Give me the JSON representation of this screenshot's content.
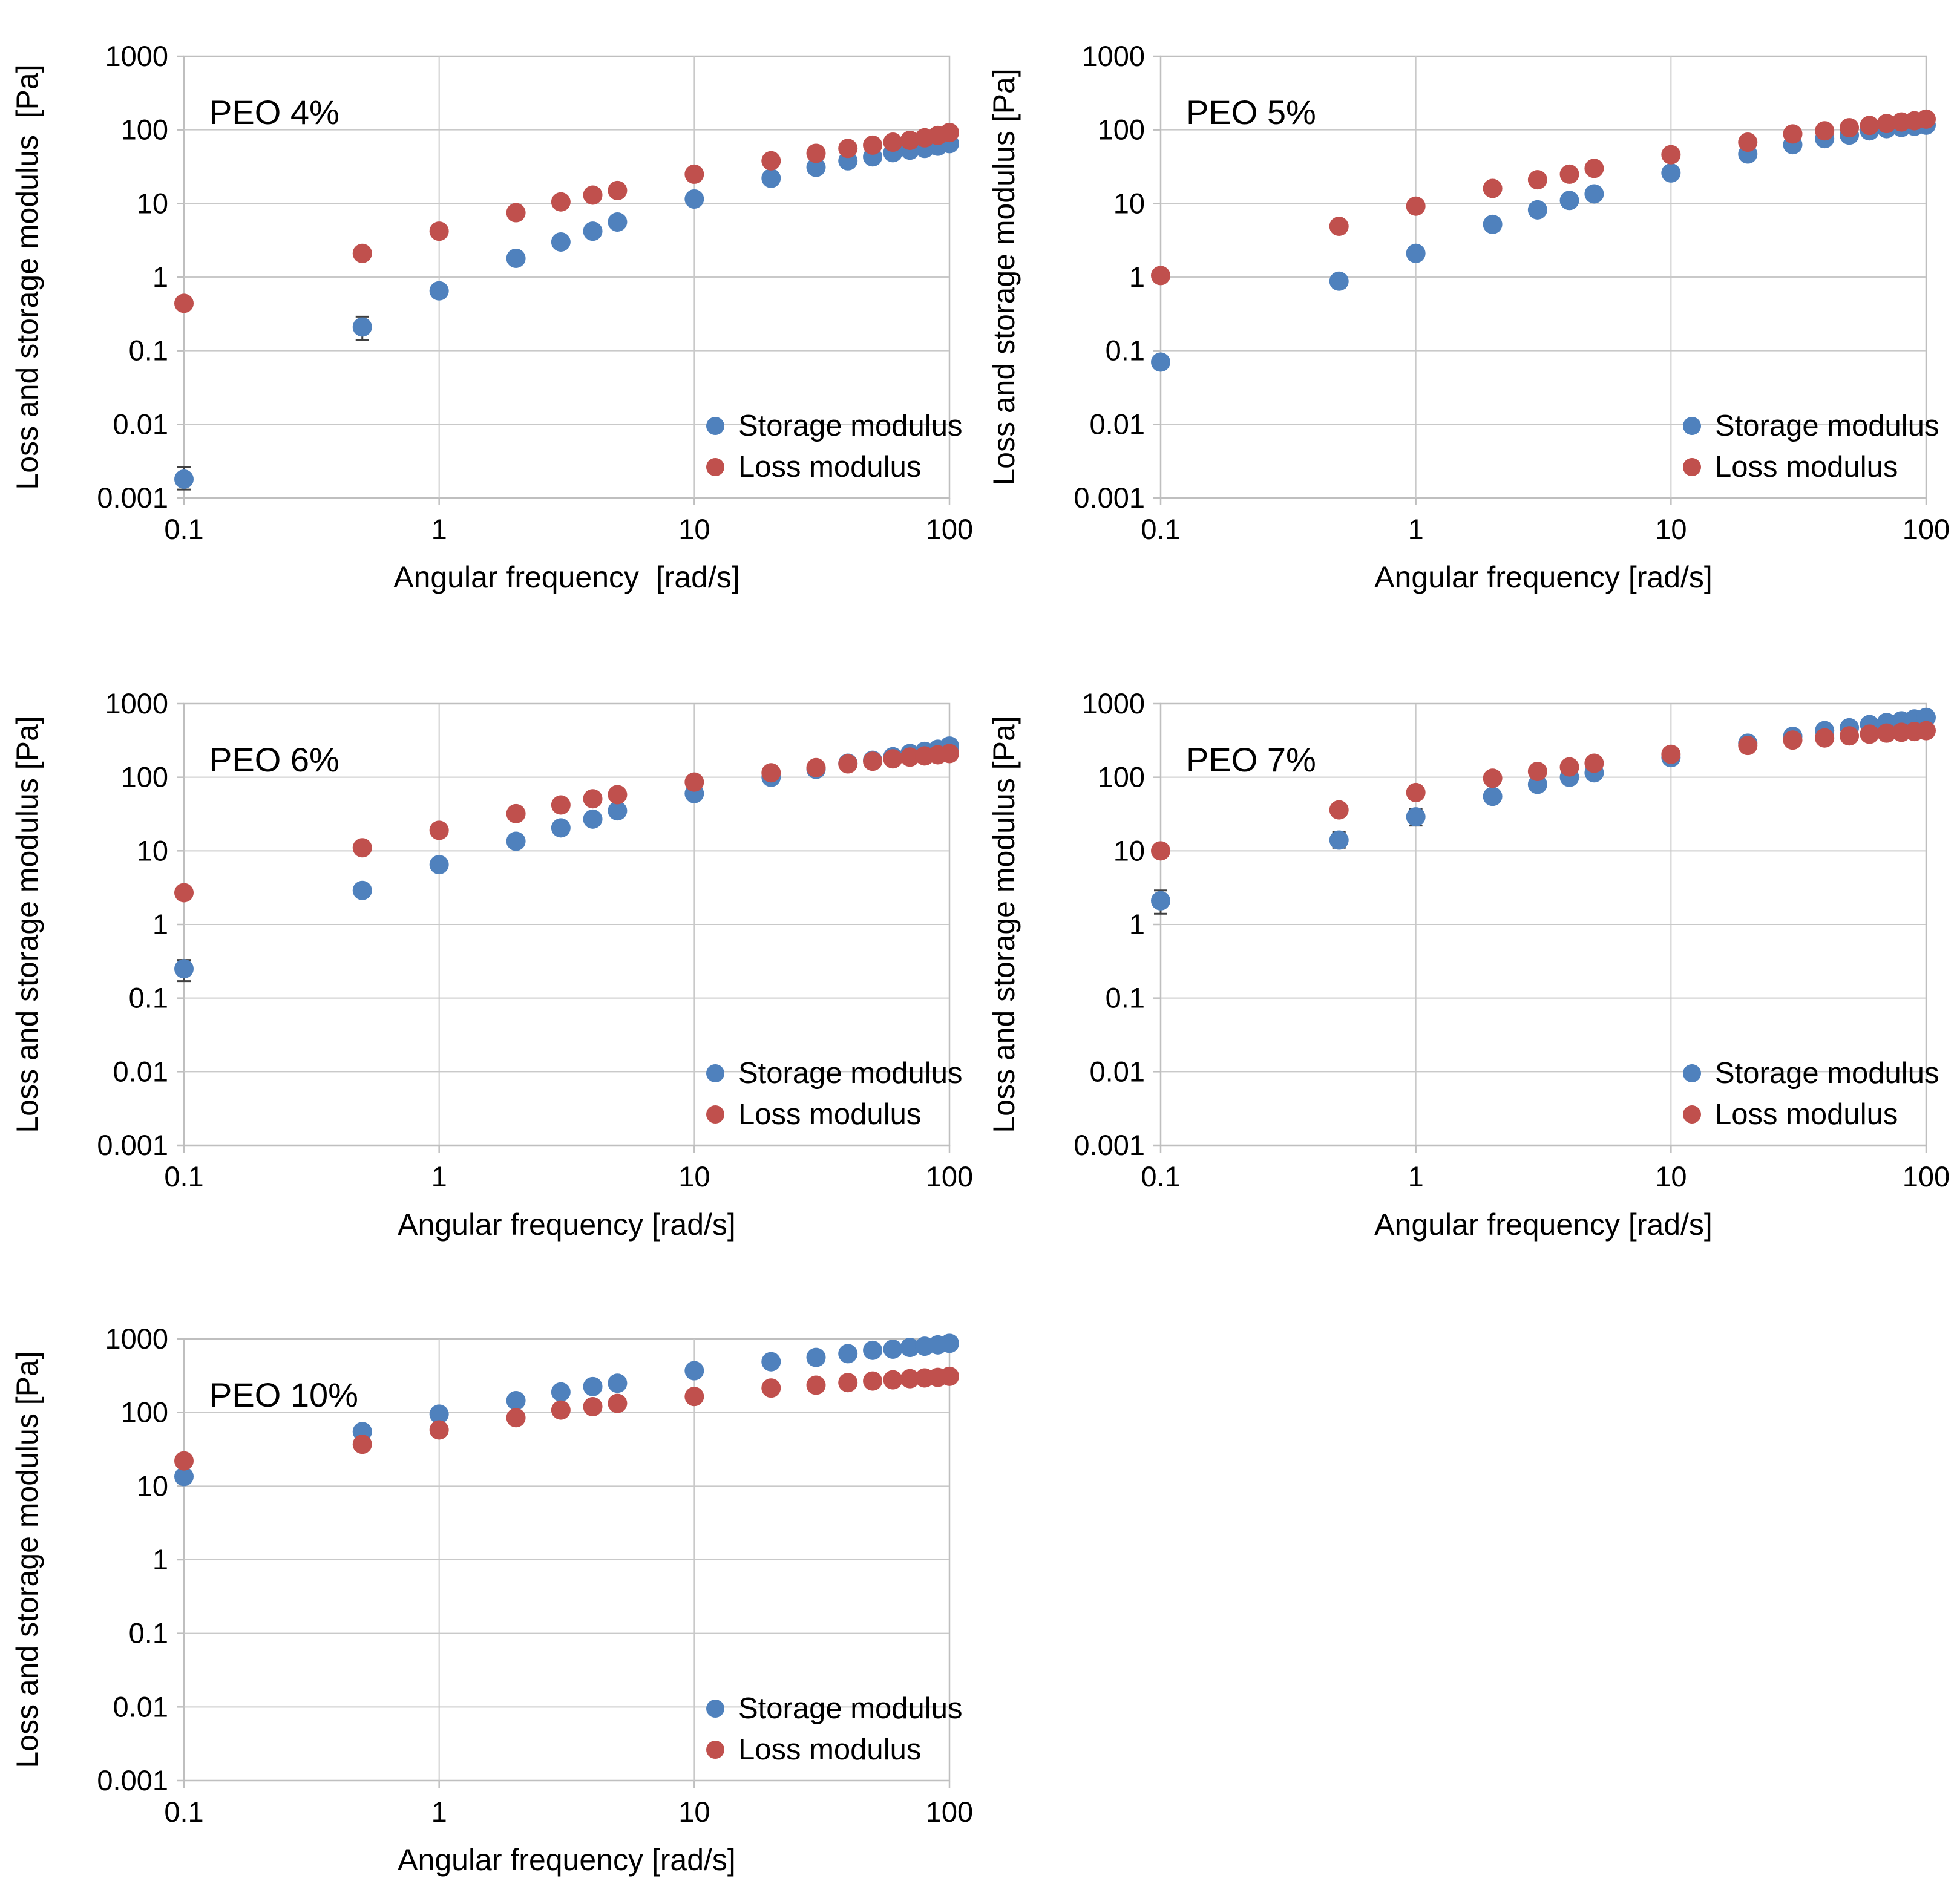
{
  "figure": {
    "background": "#FFFFFF",
    "text_color": "#000000",
    "grid_color": "#C9C9C9",
    "axis_color": "#BFBFBF",
    "error_bar_color": "#404040",
    "storage_color": "#4F81BD",
    "loss_color": "#C0504D",
    "legend": {
      "storage_label": "Storage modulus",
      "loss_label": "Loss modulus"
    }
  },
  "chart_data": [
    {
      "type": "scatter",
      "title": "PEO 4%",
      "xlabel": "Angular frequency  [rad/s]",
      "ylabel": "Loss and storage modulus  [Pa]",
      "xscale": "log",
      "yscale": "log",
      "xlim": [
        0.1,
        100
      ],
      "ylim": [
        0.001,
        1000
      ],
      "x_ticks": [
        "0.1",
        "1",
        "10",
        "100"
      ],
      "y_ticks": [
        "1000",
        "100",
        "10",
        "1",
        "0.1",
        "0.01",
        "0.001"
      ],
      "grid": true,
      "legend_position": "bottom-right",
      "x": [
        0.1,
        0.5,
        1,
        2,
        3,
        4,
        5,
        10,
        20,
        30,
        40,
        50,
        60,
        70,
        80,
        90,
        100
      ],
      "series": [
        {
          "name": "Storage modulus",
          "color_key": "storage",
          "values": [
            0.0018,
            0.21,
            0.65,
            1.8,
            3.0,
            4.2,
            5.6,
            11.5,
            22,
            31,
            38,
            43,
            49,
            53,
            56,
            60,
            65
          ],
          "err": {
            "0": [
              0.0013,
              0.0026
            ],
            "1": [
              0.14,
              0.29
            ]
          }
        },
        {
          "name": "Loss modulus",
          "color_key": "loss",
          "values": [
            0.44,
            2.1,
            4.2,
            7.5,
            10.5,
            13,
            15,
            25,
            38,
            48,
            56,
            62,
            68,
            72,
            78,
            84,
            92
          ],
          "err": {}
        }
      ]
    },
    {
      "type": "scatter",
      "title": "PEO 5%",
      "xlabel": "Angular frequency [rad/s]",
      "ylabel": "Loss and storage modulus [Pa]",
      "xscale": "log",
      "yscale": "log",
      "xlim": [
        0.1,
        100
      ],
      "ylim": [
        0.001,
        1000
      ],
      "x_ticks": [
        "0.1",
        "1",
        "10",
        "100"
      ],
      "y_ticks": [
        "1000",
        "100",
        "10",
        "1",
        "0.1",
        "0.01",
        "0.001"
      ],
      "grid": true,
      "legend_position": "bottom-right",
      "x": [
        0.1,
        0.5,
        1,
        2,
        3,
        4,
        5,
        10,
        20,
        30,
        40,
        50,
        60,
        70,
        80,
        90,
        100
      ],
      "series": [
        {
          "name": "Storage modulus",
          "color_key": "storage",
          "values": [
            0.07,
            0.88,
            2.1,
            5.2,
            8.2,
            11,
            13.5,
            26,
            47,
            63,
            76,
            85,
            97,
            104,
            108,
            112,
            116
          ],
          "err": {
            "1": [
              0.72,
              1.05
            ]
          }
        },
        {
          "name": "Loss modulus",
          "color_key": "loss",
          "values": [
            1.05,
            4.9,
            9.2,
            16,
            21,
            25,
            30,
            46,
            68,
            88,
            97,
            107,
            115,
            122,
            128,
            133,
            140
          ],
          "err": {}
        }
      ]
    },
    {
      "type": "scatter",
      "title": "PEO 6%",
      "xlabel": "Angular frequency [rad/s]",
      "ylabel": "Loss and storage modulus [Pa]",
      "xscale": "log",
      "yscale": "log",
      "xlim": [
        0.1,
        100
      ],
      "ylim": [
        0.001,
        1000
      ],
      "x_ticks": [
        "0.1",
        "1",
        "10",
        "100"
      ],
      "y_ticks": [
        "1000",
        "100",
        "10",
        "1",
        "0.1",
        "0.01",
        "0.001"
      ],
      "grid": true,
      "legend_position": "bottom-right",
      "x": [
        0.1,
        0.5,
        1,
        2,
        3,
        4,
        5,
        10,
        20,
        30,
        40,
        50,
        60,
        70,
        80,
        90,
        100
      ],
      "series": [
        {
          "name": "Storage modulus",
          "color_key": "storage",
          "values": [
            0.25,
            2.9,
            6.5,
            13.5,
            20.5,
            27,
            35,
            60,
            100,
            128,
            155,
            170,
            190,
            210,
            225,
            240,
            265
          ],
          "err": {
            "0": [
              0.17,
              0.33
            ]
          }
        },
        {
          "name": "Loss modulus",
          "color_key": "loss",
          "values": [
            2.7,
            11,
            19,
            32,
            42,
            51,
            58,
            86,
            115,
            135,
            152,
            165,
            178,
            188,
            195,
            202,
            210
          ],
          "err": {}
        }
      ]
    },
    {
      "type": "scatter",
      "title": "PEO 7%",
      "xlabel": "Angular frequency [rad/s]",
      "ylabel": "Loss and storage modulus [Pa]",
      "xscale": "log",
      "yscale": "log",
      "xlim": [
        0.1,
        100
      ],
      "ylim": [
        0.001,
        1000
      ],
      "x_ticks": [
        "0.1",
        "1",
        "10",
        "100"
      ],
      "y_ticks": [
        "1000",
        "100",
        "10",
        "1",
        "0.1",
        "0.01",
        "0.001"
      ],
      "grid": true,
      "legend_position": "bottom-right",
      "x": [
        0.1,
        0.5,
        1,
        2,
        3,
        4,
        5,
        10,
        20,
        30,
        40,
        50,
        60,
        70,
        80,
        90,
        100
      ],
      "series": [
        {
          "name": "Storage modulus",
          "color_key": "storage",
          "values": [
            2.1,
            14,
            29,
            55,
            80,
            100,
            115,
            185,
            290,
            360,
            430,
            470,
            520,
            555,
            585,
            620,
            650
          ],
          "err": {
            "0": [
              1.4,
              2.9
            ],
            "1": [
              11,
              18
            ],
            "2": [
              22,
              37
            ],
            "3": [
              46,
              66
            ],
            "4": [
              66,
              96
            ],
            "5": [
              85,
              118
            ],
            "6": [
              100,
              133
            ],
            "7": [
              165,
              205
            ],
            "8": [
              270,
              310
            ],
            "9": [
              340,
              385
            ],
            "10": [
              410,
              455
            ],
            "11": [
              450,
              495
            ],
            "12": [
              500,
              545
            ]
          }
        },
        {
          "name": "Loss modulus",
          "color_key": "loss",
          "values": [
            10,
            36,
            62,
            97,
            120,
            138,
            155,
            205,
            270,
            320,
            342,
            365,
            385,
            398,
            408,
            418,
            430
          ],
          "err": {
            "0": [
              8.5,
              12
            ],
            "1": [
              30,
              43
            ],
            "2": [
              55,
              70
            ],
            "3": [
              85,
              110
            ],
            "4": [
              105,
              135
            ],
            "5": [
              122,
              155
            ],
            "6": [
              138,
              172
            ],
            "7": [
              190,
              222
            ]
          }
        }
      ]
    },
    {
      "type": "scatter",
      "title": "PEO 10%",
      "xlabel": "Angular frequency [rad/s]",
      "ylabel": "Loss and storage modulus [Pa]",
      "xscale": "log",
      "yscale": "log",
      "xlim": [
        0.1,
        100
      ],
      "ylim": [
        0.001,
        1000
      ],
      "x_ticks": [
        "0.1",
        "1",
        "10",
        "100"
      ],
      "y_ticks": [
        "1000",
        "100",
        "10",
        "1",
        "0.1",
        "0.01",
        "0.001"
      ],
      "grid": true,
      "legend_position": "bottom-right",
      "x": [
        0.1,
        0.5,
        1,
        2,
        3,
        4,
        5,
        10,
        20,
        30,
        40,
        50,
        60,
        70,
        80,
        90,
        100
      ],
      "series": [
        {
          "name": "Storage modulus",
          "color_key": "storage",
          "values": [
            13.5,
            55,
            95,
            145,
            190,
            225,
            250,
            370,
            490,
            560,
            630,
            700,
            725,
            765,
            795,
            830,
            870
          ],
          "err": {}
        },
        {
          "name": "Loss modulus",
          "color_key": "loss",
          "values": [
            22,
            37,
            58,
            85,
            108,
            120,
            133,
            165,
            215,
            235,
            255,
            268,
            278,
            288,
            295,
            300,
            310
          ],
          "err": {}
        }
      ]
    }
  ]
}
